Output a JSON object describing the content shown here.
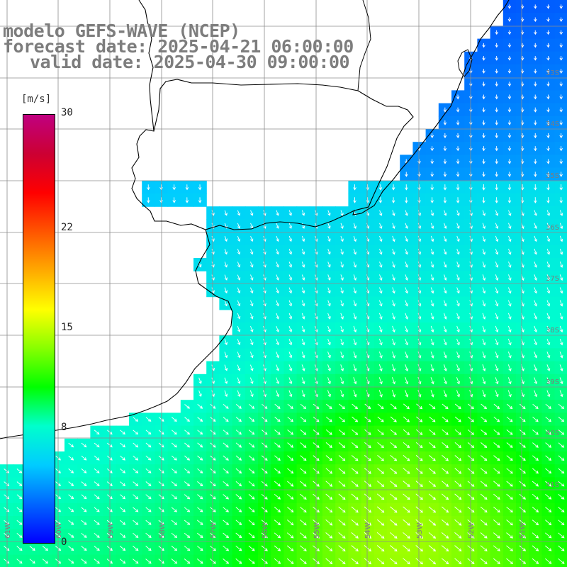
{
  "header": {
    "model": "modelo GEFS-WAVE (NCEP)",
    "forecast": "forecast date: 2025-04-21 06:00:00",
    "valid": "valid date: 2025-04-30 09:00:00"
  },
  "colorbar": {
    "unit": "[m/s]",
    "min": 0,
    "max": 30,
    "ticks": [
      {
        "label": "30",
        "value": 30
      },
      {
        "label": "22",
        "value": 22
      },
      {
        "label": "15",
        "value": 15
      },
      {
        "label": "8",
        "value": 8
      },
      {
        "label": "0",
        "value": 0
      }
    ],
    "colors": [
      "#0000ff",
      "#0066ff",
      "#00ccff",
      "#00ffcc",
      "#00ff00",
      "#88ff00",
      "#ffff00",
      "#ffaa00",
      "#ff5500",
      "#ff0000",
      "#cc0033",
      "#c00080"
    ]
  },
  "map": {
    "variable": "wind speed",
    "grid_lat_labels": [
      "33S",
      "34S",
      "35S",
      "36S",
      "37S",
      "38S",
      "39S",
      "40S",
      "41S"
    ],
    "grid_lon_labels": [
      "61W",
      "60W",
      "59W",
      "58W",
      "57W",
      "56W",
      "55W",
      "54W",
      "53W",
      "52W",
      "51W"
    ],
    "land_color": "#ffffff",
    "coast_color": "#000000",
    "grid_color": "#8c8c8c",
    "arrow_color": "#ffffff"
  }
}
